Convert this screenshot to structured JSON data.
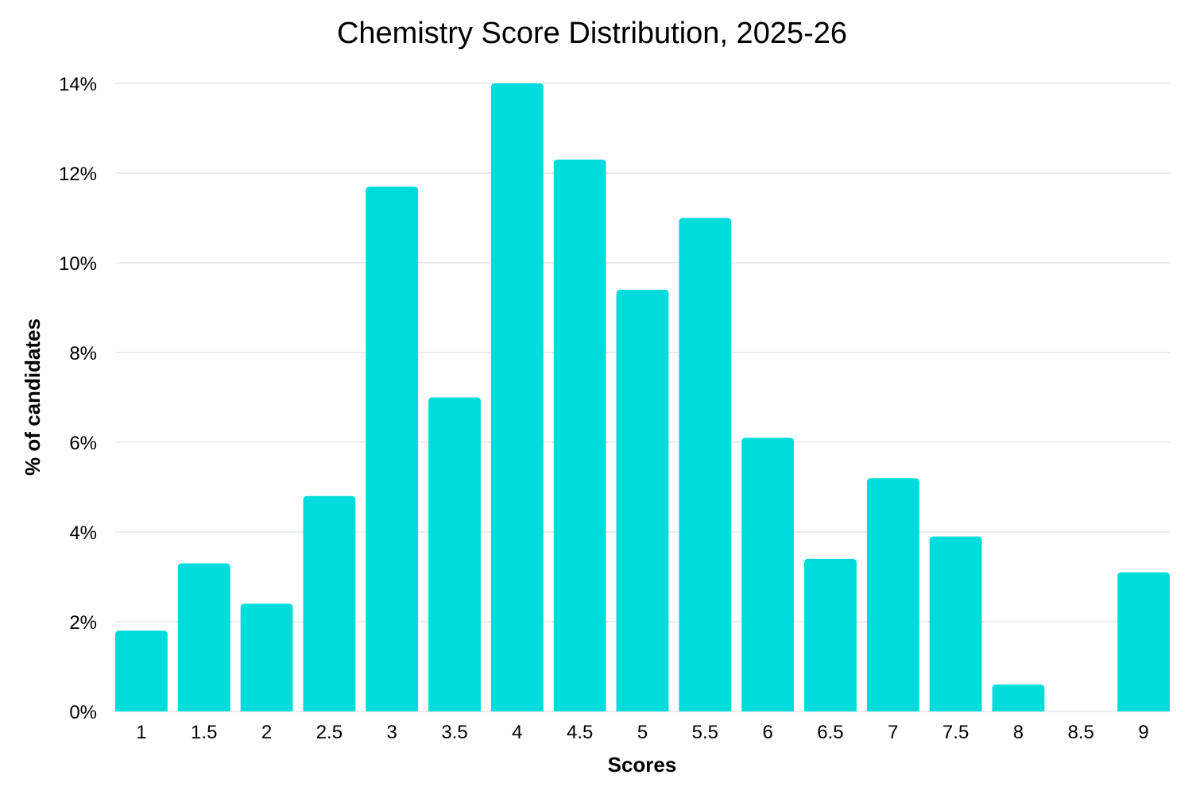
{
  "chart_data": {
    "type": "bar",
    "title": "Chemistry Score Distribution, 2025-26",
    "xlabel": "Scores",
    "ylabel": "% of candidates",
    "categories": [
      "1",
      "1.5",
      "2",
      "2.5",
      "3",
      "3.5",
      "4",
      "4.5",
      "5",
      "5.5",
      "6",
      "6.5",
      "7",
      "7.5",
      "8",
      "8.5",
      "9"
    ],
    "values": [
      1.8,
      3.3,
      2.4,
      4.8,
      11.7,
      7.0,
      14.0,
      12.3,
      9.4,
      11.0,
      6.1,
      3.4,
      5.2,
      3.9,
      0.6,
      0.0,
      3.1
    ],
    "ylim": [
      0,
      14
    ],
    "yticks": [
      0,
      2,
      4,
      6,
      8,
      10,
      12,
      14
    ],
    "ytick_labels": [
      "0%",
      "2%",
      "4%",
      "6%",
      "8%",
      "10%",
      "12%",
      "14%"
    ],
    "grid": true,
    "legend": "none",
    "bar_color": "#00DBDB",
    "grid_color": "#D9D9D9"
  }
}
